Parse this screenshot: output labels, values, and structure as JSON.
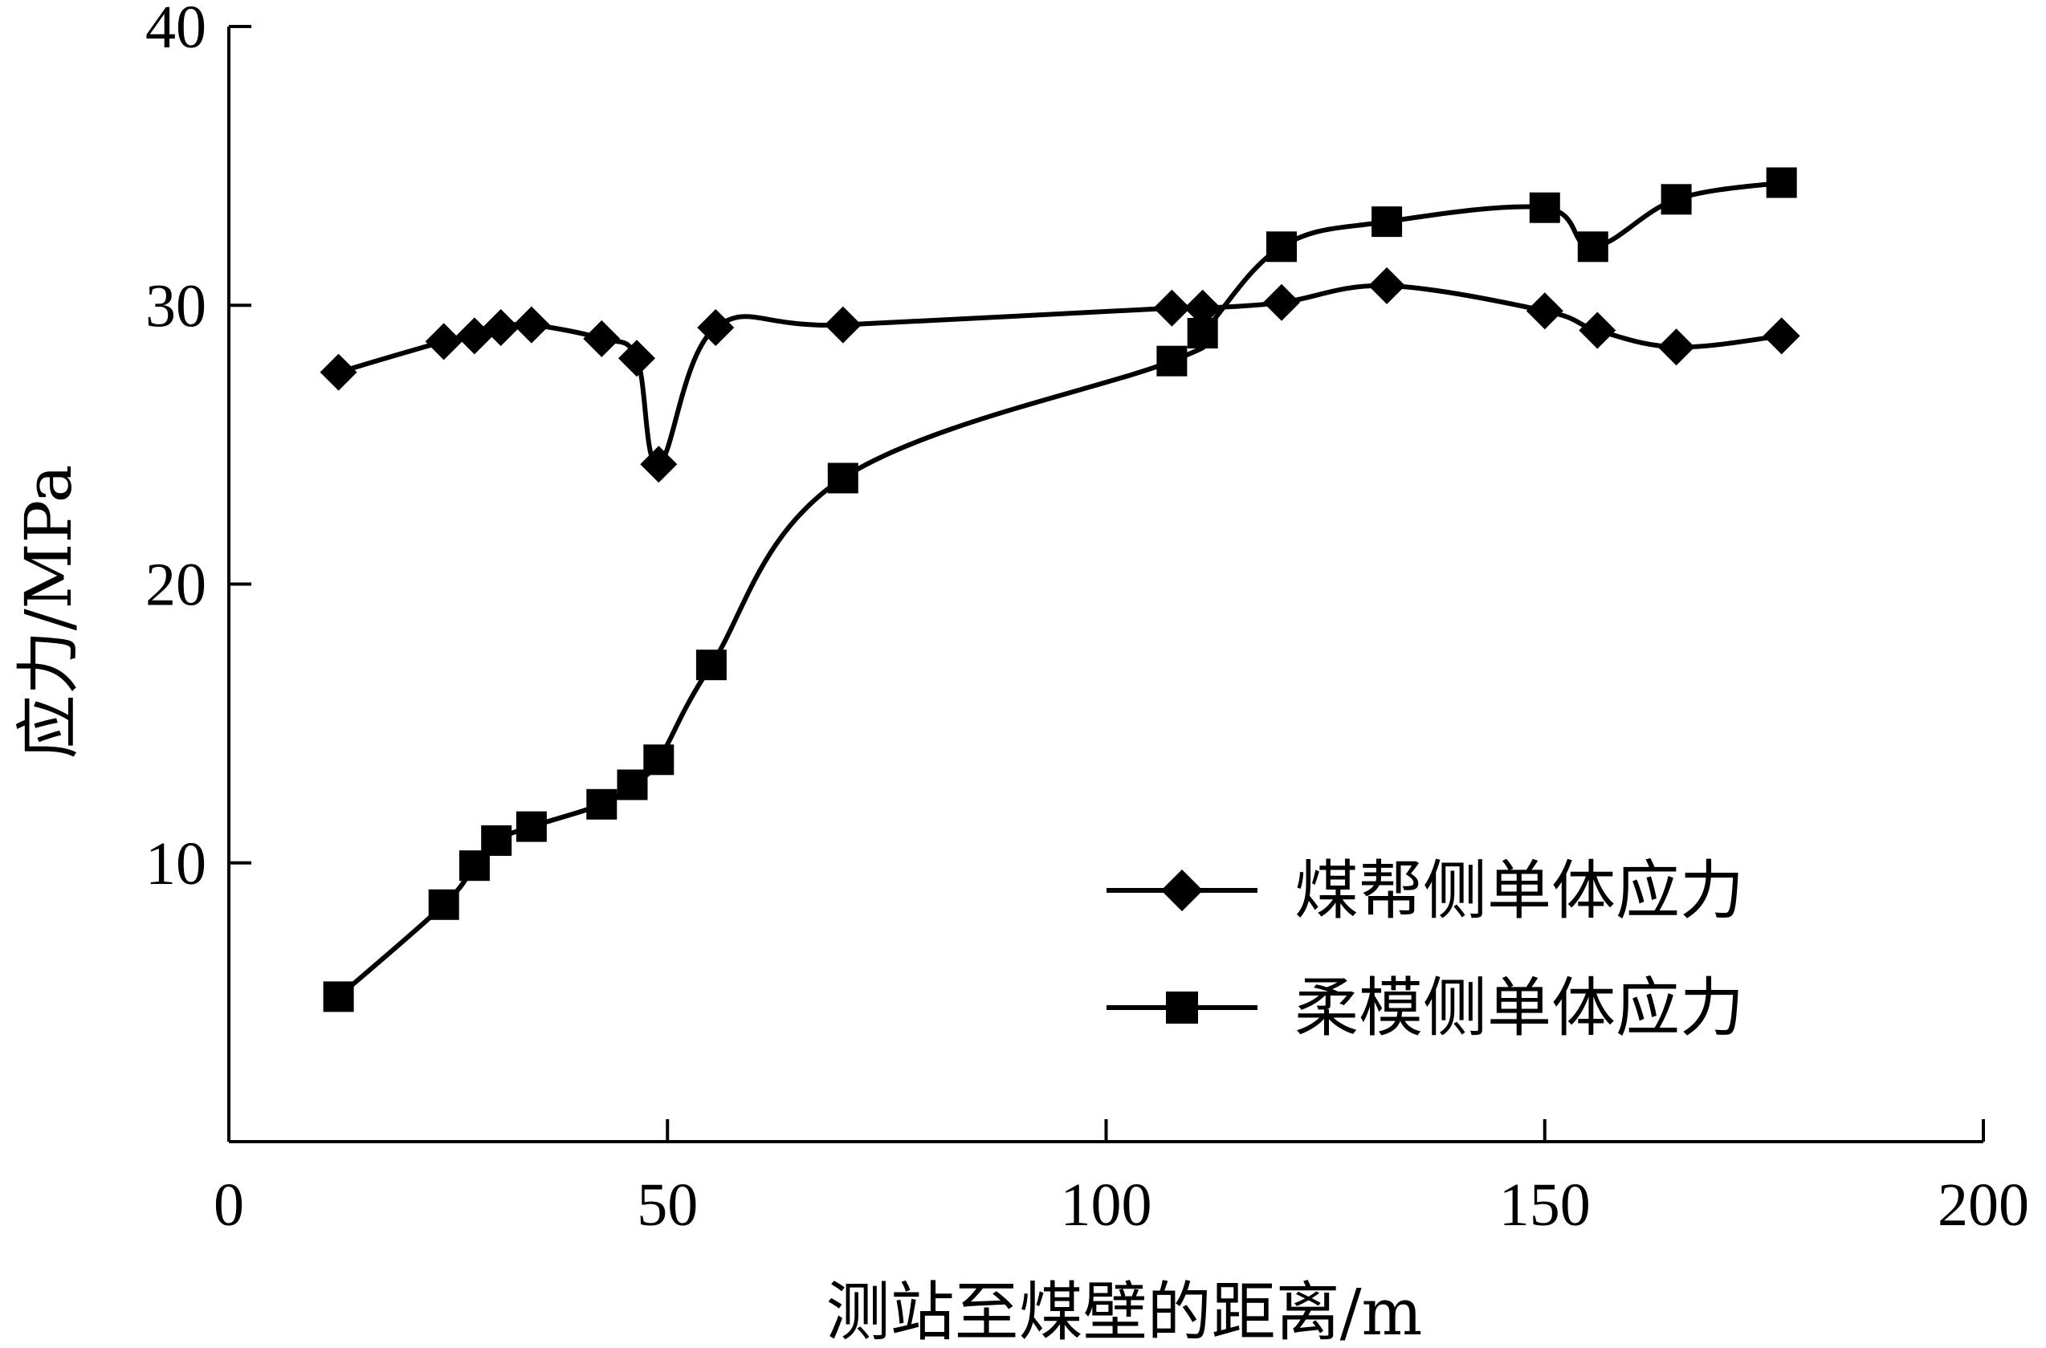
{
  "chart_data": {
    "type": "line",
    "title": "",
    "xlabel": "测站至煤壁的距离/m",
    "ylabel": "应力/MPa",
    "xlim": [
      0,
      200
    ],
    "ylim": [
      0,
      40
    ],
    "xticks": [
      0,
      50,
      100,
      150,
      200
    ],
    "yticks": [
      10,
      20,
      30,
      40
    ],
    "xtick_labels": [
      "0",
      "50",
      "100",
      "150",
      "200"
    ],
    "ytick_labels": [
      "10",
      "20",
      "30",
      "40"
    ],
    "grid": false,
    "legend_position": "bottom-right",
    "series": [
      {
        "name": "煤帮侧单体应力",
        "marker": "diamond",
        "color": "#000000",
        "x": [
          12.5,
          24.5,
          28,
          31,
          34.5,
          42.5,
          46.5,
          49,
          55.5,
          70,
          107.5,
          111,
          120,
          132,
          150,
          156,
          165,
          177
        ],
        "y": [
          27.6,
          28.7,
          28.9,
          29.2,
          29.3,
          28.8,
          28.1,
          24.3,
          29.2,
          29.3,
          29.9,
          29.9,
          30.1,
          30.7,
          29.8,
          29.1,
          28.5,
          28.9
        ]
      },
      {
        "name": "柔模侧单体应力",
        "marker": "square",
        "color": "#000000",
        "x": [
          12.5,
          24.5,
          28,
          30.5,
          34.5,
          42.5,
          46,
          49,
          55,
          70,
          107.5,
          111,
          120,
          132,
          150,
          155.5,
          165,
          177
        ],
        "y": [
          5.2,
          8.5,
          9.9,
          10.8,
          11.3,
          12.1,
          12.8,
          13.7,
          17.1,
          23.8,
          28.0,
          29.0,
          32.1,
          33.0,
          33.5,
          32.1,
          33.8,
          34.4
        ]
      }
    ]
  }
}
